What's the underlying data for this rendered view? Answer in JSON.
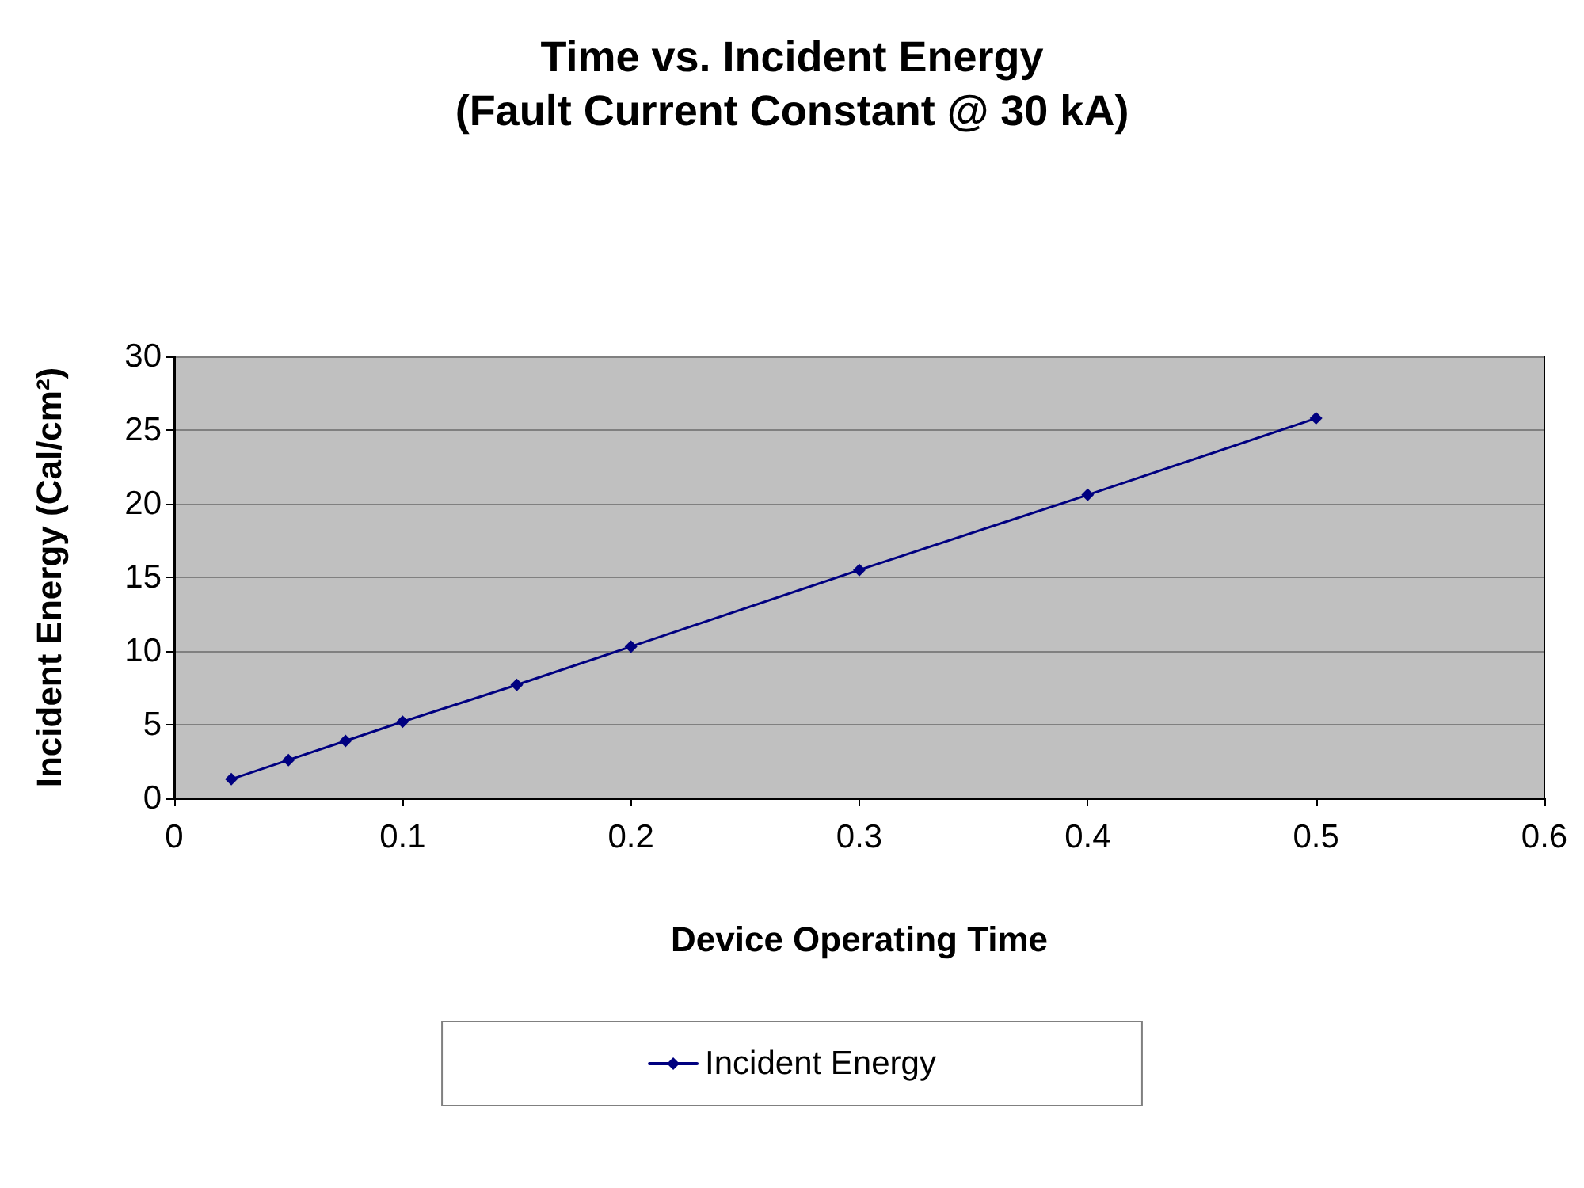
{
  "chart_data": {
    "type": "line",
    "title": "Time vs. Incident Energy\n(Fault Current Constant @ 30 kA)",
    "xlabel": "Device Operating Time",
    "ylabel": "Incident Energy (Cal/cm²)",
    "x": [
      0.025,
      0.05,
      0.075,
      0.1,
      0.15,
      0.2,
      0.3,
      0.4,
      0.5
    ],
    "series": [
      {
        "name": "Incident Energy",
        "color": "#000080",
        "values": [
          1.3,
          2.6,
          3.9,
          5.2,
          7.7,
          10.3,
          15.5,
          20.6,
          25.8
        ]
      }
    ],
    "xlim": [
      0,
      0.6
    ],
    "xticks": [
      0,
      0.1,
      0.2,
      0.3,
      0.4,
      0.5,
      0.6
    ],
    "ylim": [
      0,
      30
    ],
    "yticks": [
      0,
      5,
      10,
      15,
      20,
      25,
      30
    ],
    "grid": "y",
    "legend": "bottom",
    "marker": "diamond",
    "line_style": "solid"
  }
}
